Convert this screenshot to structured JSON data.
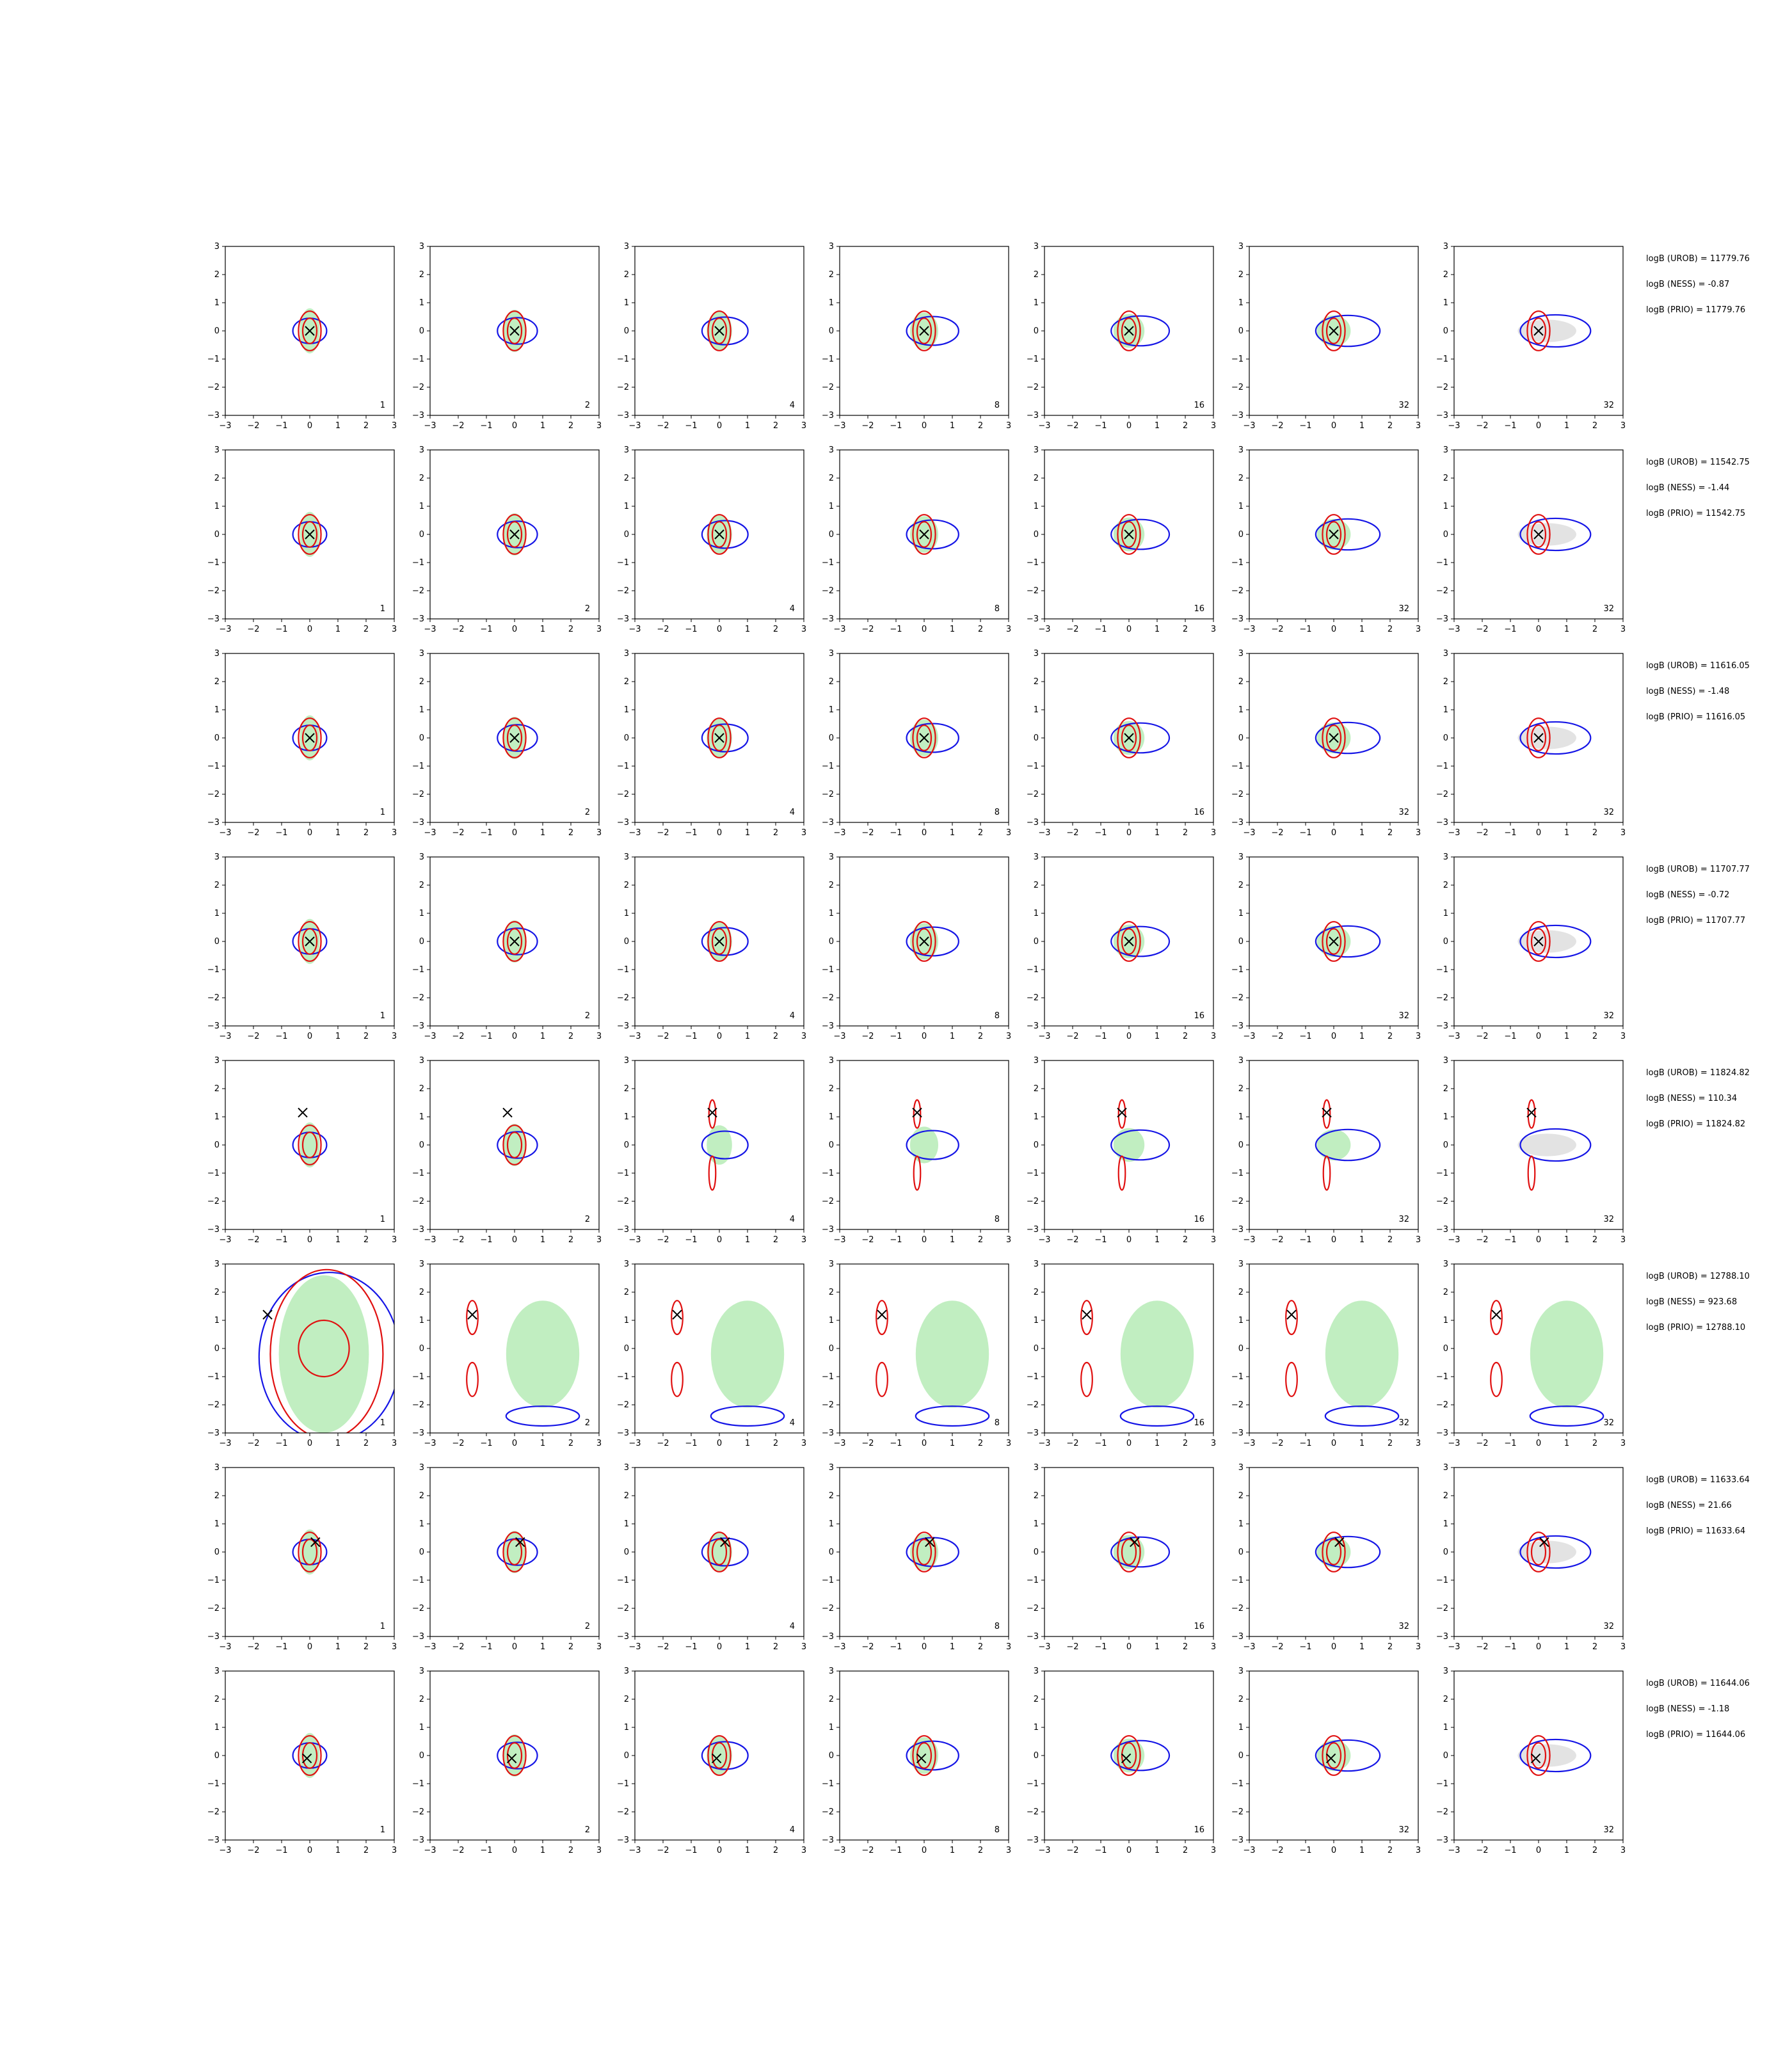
{
  "figure": {
    "background": "#ffffff",
    "colors": {
      "red_contour": "#e01010",
      "blue_contour": "#1515e6",
      "green_fill": "#b6ebb6",
      "grey_fill": "#d9d9d9",
      "marker": "#000000"
    },
    "panel_ticks": [
      "−3",
      "−2",
      "−1",
      "0",
      "1",
      "2",
      "3"
    ],
    "panel_labels": [
      "1",
      "2",
      "4",
      "8",
      "16",
      "32",
      "32"
    ]
  },
  "chart_data": {
    "type": "contour",
    "grid": {
      "rows": 8,
      "cols": 7
    },
    "axis": {
      "xlim": [
        -3,
        3
      ],
      "ylim": [
        -3,
        3
      ],
      "xticks": [
        -3,
        -2,
        -1,
        0,
        1,
        2,
        3
      ],
      "yticks": [
        -3,
        -2,
        -1,
        0,
        1,
        2,
        3
      ]
    },
    "rows": [
      {
        "marker": [
          0.0,
          0.0
        ],
        "stats": [
          "logB (UROB) = 11779.76",
          "logB (NESS) = -0.87",
          "logB (PRIO) = 11779.76"
        ]
      },
      {
        "marker": [
          0.0,
          0.0
        ],
        "stats": [
          "logB (UROB) = 11542.75",
          "logB (NESS) = -1.44",
          "logB (PRIO) = 11542.75"
        ]
      },
      {
        "marker": [
          0.0,
          0.0
        ],
        "stats": [
          "logB (UROB) = 11616.05",
          "logB (NESS) = -1.48",
          "logB (PRIO) = 11616.05"
        ]
      },
      {
        "marker": [
          0.0,
          0.0
        ],
        "stats": [
          "logB (UROB) = 11707.77",
          "logB (NESS) = -0.72",
          "logB (PRIO) = 11707.77"
        ]
      },
      {
        "marker": [
          -0.25,
          1.15
        ],
        "stats": [
          "logB (UROB) = 11824.82",
          "logB (NESS) = 110.34",
          "logB (PRIO) = 11824.82"
        ]
      },
      {
        "marker": [
          -1.5,
          1.2
        ],
        "stats": [
          "logB (UROB) = 12788.10",
          "logB (NESS) = 923.68",
          "logB (PRIO) = 12788.10"
        ]
      },
      {
        "marker": [
          0.2,
          0.35
        ],
        "stats": [
          "logB (UROB) = 11633.64",
          "logB (NESS) = 21.66",
          "logB (PRIO) = 11633.64"
        ]
      },
      {
        "marker": [
          -0.1,
          -0.1
        ],
        "stats": [
          "logB (UROB) = 11644.06",
          "logB (NESS) = -1.18",
          "logB (PRIO) = 11644.06"
        ]
      }
    ]
  }
}
